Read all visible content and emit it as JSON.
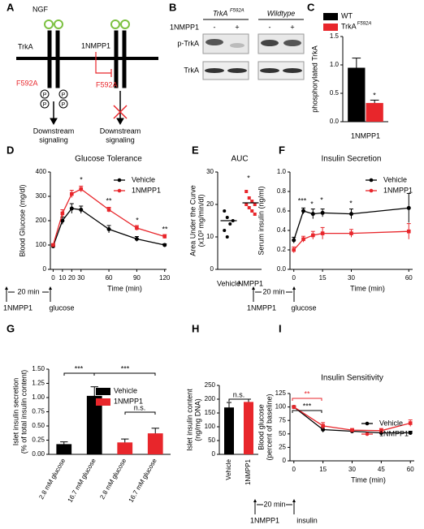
{
  "panel_labels": [
    "A",
    "B",
    "C",
    "D",
    "E",
    "F",
    "G",
    "H",
    "I"
  ],
  "diagram": {
    "ngf": "NGF",
    "trka": "TrkA",
    "mutation_left": "F592A",
    "drug": "1NMPP1",
    "mutation_right": "F592A",
    "phospho": [
      "P",
      "P",
      "P",
      "P"
    ],
    "downstream_left": [
      "Downstream",
      "signaling"
    ],
    "downstream_right": [
      "Downstream",
      "signaling"
    ]
  },
  "blot": {
    "header_left": "TrkA",
    "header_left_sup": "F592A",
    "header_right": "Wildtype",
    "treatment": "1NMPP1",
    "lanes": [
      "-",
      "+",
      "-",
      "+"
    ],
    "rows": [
      "p-TrkA",
      "TrkA"
    ]
  },
  "chart_data": [
    {
      "type": "bar",
      "ylabel": "phosphorylated TrkA",
      "categories": [
        "1NMPP1"
      ],
      "series": [
        {
          "name": "WT",
          "color": "#000000",
          "values": [
            0.95
          ],
          "errors": [
            0.17
          ]
        },
        {
          "name": "TrkA",
          "name_sup": "F592A",
          "color": "#e8262b",
          "values": [
            0.33
          ],
          "errors": [
            0.05
          ]
        }
      ],
      "ylim": [
        0,
        1.5
      ],
      "yticks": [
        {
          "value": 0,
          "label": "0.0"
        },
        {
          "value": 0.5,
          "label": "0.5"
        },
        {
          "value": 1,
          "label": "1.0"
        },
        {
          "value": 1.5,
          "label": "1.5"
        }
      ],
      "legend": "upper left",
      "annotations": [
        {
          "text": "*",
          "color": "#000000"
        }
      ]
    },
    {
      "type": "line",
      "title": "Glucose Tolerance",
      "xlabel": "Time (min)",
      "ylabel": "Blood Glucose (mg/dl)",
      "x": [
        0,
        10,
        20,
        30,
        60,
        90,
        120
      ],
      "series": [
        {
          "name": "Vehicle",
          "color": "#000000",
          "values": [
            95,
            200,
            250,
            245,
            165,
            125,
            100
          ],
          "errors": [
            5,
            15,
            20,
            15,
            15,
            10,
            5
          ]
        },
        {
          "name": "1NMPP1",
          "color": "#e8262b",
          "values": [
            100,
            230,
            310,
            330,
            245,
            170,
            135
          ],
          "errors": [
            5,
            15,
            15,
            12,
            10,
            10,
            8
          ]
        }
      ],
      "xlim": [
        -3,
        122
      ],
      "xticks": [
        0,
        10,
        20,
        30,
        60,
        90,
        120
      ],
      "ylim": [
        0,
        400
      ],
      "yticks": [
        0,
        100,
        200,
        300,
        400
      ],
      "legend": "upper right",
      "timeline": [
        "20 min",
        "1NMPP1",
        "glucose"
      ],
      "annotations": [
        {
          "text": "*",
          "color": "#000000"
        },
        {
          "text": "**",
          "color": "#000000"
        },
        {
          "text": "*",
          "color": "#000000"
        },
        {
          "text": "**",
          "color": "#000000"
        }
      ]
    },
    {
      "type": "scatter",
      "title": "AUC",
      "ylabel": [
        "Area Under the Curve",
        "(x10³ mg/min/dl)"
      ],
      "categories": [
        "Vehicle",
        "NMPP1"
      ],
      "colors": [
        "#000000",
        "#e8262b"
      ],
      "points": [
        [
          18,
          16,
          14,
          15,
          12,
          10
        ],
        [
          24,
          22,
          21,
          20,
          20,
          19,
          18,
          17
        ]
      ],
      "means": [
        15,
        20.5
      ],
      "ylim": [
        0,
        30
      ],
      "yticks": [
        0,
        10,
        20,
        30
      ],
      "annotations": [
        {
          "text": "*",
          "color": "#000000"
        }
      ]
    },
    {
      "type": "line",
      "title": "Insulin Secretion",
      "xlabel": "Time (min)",
      "ylabel": "Serum insulin (ng/ml)",
      "x": [
        0,
        5,
        10,
        15,
        30,
        60
      ],
      "series": [
        {
          "name": "Vehicle",
          "color": "#000000",
          "values": [
            0.3,
            0.6,
            0.57,
            0.58,
            0.57,
            0.63
          ],
          "errors": [
            0.03,
            0.03,
            0.05,
            0.04,
            0.05,
            0.15
          ]
        },
        {
          "name": "1NMPP1",
          "color": "#e8262b",
          "values": [
            0.2,
            0.31,
            0.35,
            0.37,
            0.37,
            0.39
          ],
          "errors": [
            0.03,
            0.03,
            0.04,
            0.06,
            0.04,
            0.08
          ]
        }
      ],
      "xlim": [
        -2,
        62
      ],
      "xticks": [
        0,
        15,
        30,
        60
      ],
      "ylim": [
        0,
        1
      ],
      "yticks": [
        {
          "value": 0,
          "label": "0.0"
        },
        {
          "value": 0.2,
          "label": "0.2"
        },
        {
          "value": 0.4,
          "label": "0.4"
        },
        {
          "value": 0.6,
          "label": "0.6"
        },
        {
          "value": 0.8,
          "label": "0.8"
        },
        {
          "value": 1,
          "label": "1.0"
        }
      ],
      "legend": "upper right",
      "timeline": [
        "20 min",
        "1NMPP1",
        "glucose"
      ],
      "annotations": [
        {
          "text": "***",
          "color": "#000000"
        },
        {
          "text": "*",
          "color": "#000000"
        },
        {
          "text": "*",
          "color": "#000000"
        },
        {
          "text": "*",
          "color": "#000000"
        }
      ]
    },
    {
      "type": "bar",
      "ylabel": [
        "Islet insulin secretion",
        "(% of total insulin content)"
      ],
      "categories": [
        "2.8 mM glucose",
        "16.7 mM glucose",
        "2.8 mM glucose",
        "16.7 mM glucose"
      ],
      "series": [
        {
          "name": "Vehicle",
          "color": "#000000",
          "values": [
            0.18,
            1.03,
            null,
            null
          ],
          "errors": [
            0.04,
            0.16,
            null,
            null
          ]
        },
        {
          "name": "1NMPP1",
          "color": "#e8262b",
          "values": [
            null,
            null,
            0.21,
            0.37
          ],
          "errors": [
            null,
            null,
            0.06,
            0.09
          ]
        }
      ],
      "ylim": [
        0,
        1.5
      ],
      "yticks": [
        {
          "value": 0,
          "label": "0.00"
        },
        {
          "value": 0.25,
          "label": "0.25"
        },
        {
          "value": 0.5,
          "label": "0.50"
        },
        {
          "value": 0.75,
          "label": "0.75"
        },
        {
          "value": 1,
          "label": "1.00"
        },
        {
          "value": 1.25,
          "label": "1.25"
        },
        {
          "value": 1.5,
          "label": "1.50"
        }
      ],
      "legend": "upper right",
      "annotations": [
        {
          "text": "***",
          "color": "#000000"
        },
        {
          "text": "***",
          "color": "#000000"
        },
        {
          "text": "n.s.",
          "color": "#000000"
        }
      ]
    },
    {
      "type": "bar",
      "ylabel": [
        "Islet insulin content",
        "(ng/mg DNA)"
      ],
      "categories": [
        "Vehicle",
        "1NMPP1"
      ],
      "series": [
        {
          "name": "Vehicle",
          "color": "#000000",
          "values": [
            170,
            null
          ],
          "errors": [
            18,
            null
          ]
        },
        {
          "name": "1NMPP1",
          "color": "#e8262b",
          "values": [
            null,
            190
          ],
          "errors": [
            null,
            10
          ]
        }
      ],
      "ylim": [
        0,
        250
      ],
      "yticks": [
        0,
        50,
        100,
        150,
        200,
        250
      ],
      "annotations": [
        {
          "text": "n.s.",
          "color": "#000000"
        }
      ]
    },
    {
      "type": "line",
      "title": "Insulin Sensitivity",
      "xlabel": "Time (min)",
      "ylabel": [
        "Blood glucose",
        "(percent of baseline)"
      ],
      "x": [
        0,
        15,
        30,
        45,
        60
      ],
      "series": [
        {
          "name": "Vehicle",
          "color": "#000000",
          "values": [
            100,
            58,
            55,
            52,
            52
          ],
          "errors": [
            2,
            5,
            3,
            4,
            3
          ]
        },
        {
          "name": "1NMPP1",
          "color": "#e8262b",
          "values": [
            100,
            65,
            57,
            56,
            70
          ],
          "errors": [
            2,
            6,
            3,
            4,
            6
          ]
        }
      ],
      "xlim": [
        -2,
        62
      ],
      "xticks": [
        0,
        15,
        30,
        45,
        60
      ],
      "ylim": [
        0,
        125
      ],
      "yticks": [
        0,
        25,
        50,
        75,
        100,
        125
      ],
      "legend": "upper right",
      "timeline": [
        "20 min",
        "1NMPP1",
        "insulin"
      ],
      "annotations": [
        {
          "text": "**",
          "color": "#e8262b"
        },
        {
          "text": "***",
          "color": "#000000"
        }
      ]
    }
  ]
}
